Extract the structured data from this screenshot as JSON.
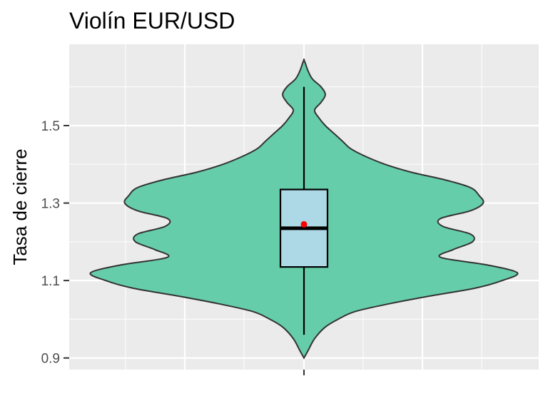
{
  "chart_data": {
    "type": "violin",
    "title": "Violín EUR/USD",
    "xlabel": "",
    "ylabel": "Tasa de cierre",
    "ylim": [
      0.87,
      1.71
    ],
    "yticks": [
      0.9,
      1.1,
      1.3,
      1.5
    ],
    "ytick_labels": [
      "0.9",
      "1.1",
      "1.3",
      "1.5"
    ],
    "grid": true,
    "legend": "none",
    "series": [
      {
        "violin_profile": [
          [
            0.9,
            0.0
          ],
          [
            0.92,
            0.02
          ],
          [
            0.95,
            0.05
          ],
          [
            0.98,
            0.1
          ],
          [
            1.0,
            0.16
          ],
          [
            1.02,
            0.24
          ],
          [
            1.04,
            0.4
          ],
          [
            1.06,
            0.59
          ],
          [
            1.08,
            0.8
          ],
          [
            1.1,
            0.93
          ],
          [
            1.12,
            1.0
          ],
          [
            1.14,
            0.86
          ],
          [
            1.16,
            0.64
          ],
          [
            1.18,
            0.7
          ],
          [
            1.2,
            0.79
          ],
          [
            1.22,
            0.78
          ],
          [
            1.24,
            0.65
          ],
          [
            1.26,
            0.64
          ],
          [
            1.28,
            0.78
          ],
          [
            1.3,
            0.84
          ],
          [
            1.32,
            0.82
          ],
          [
            1.34,
            0.78
          ],
          [
            1.36,
            0.66
          ],
          [
            1.38,
            0.5
          ],
          [
            1.4,
            0.38
          ],
          [
            1.42,
            0.29
          ],
          [
            1.44,
            0.22
          ],
          [
            1.46,
            0.18
          ],
          [
            1.48,
            0.14
          ],
          [
            1.5,
            0.1
          ],
          [
            1.52,
            0.07
          ],
          [
            1.54,
            0.05
          ],
          [
            1.56,
            0.08
          ],
          [
            1.58,
            0.1
          ],
          [
            1.6,
            0.08
          ],
          [
            1.62,
            0.04
          ],
          [
            1.64,
            0.02
          ],
          [
            1.66,
            0.007
          ],
          [
            1.67,
            0.0
          ]
        ],
        "box": {
          "q1": 1.135,
          "median": 1.235,
          "q3": 1.335,
          "whisker_low": 0.96,
          "whisker_high": 1.6
        },
        "mean": 1.245
      }
    ],
    "colors": {
      "violin_fill": "#66CDAA",
      "violin_stroke": "#333333",
      "box_fill": "#ADD8E6",
      "mean_point": "#FF0000",
      "panel_bg": "#EBEBEB",
      "grid": "#FFFFFF",
      "tick_text": "#4D4D4D"
    }
  }
}
